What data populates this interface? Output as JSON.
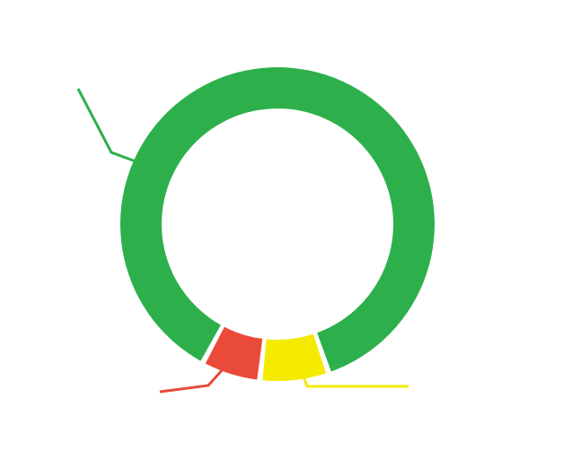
{
  "chart_data": {
    "type": "pie",
    "donut": true,
    "series": [
      {
        "name": null,
        "color": "#f5eb00",
        "values": [
          7
        ]
      },
      {
        "name": null,
        "color": "#ea4a3a",
        "values": [
          6
        ]
      },
      {
        "name": null,
        "color": "#2db04b",
        "values": [
          86
        ]
      }
    ]
  }
}
